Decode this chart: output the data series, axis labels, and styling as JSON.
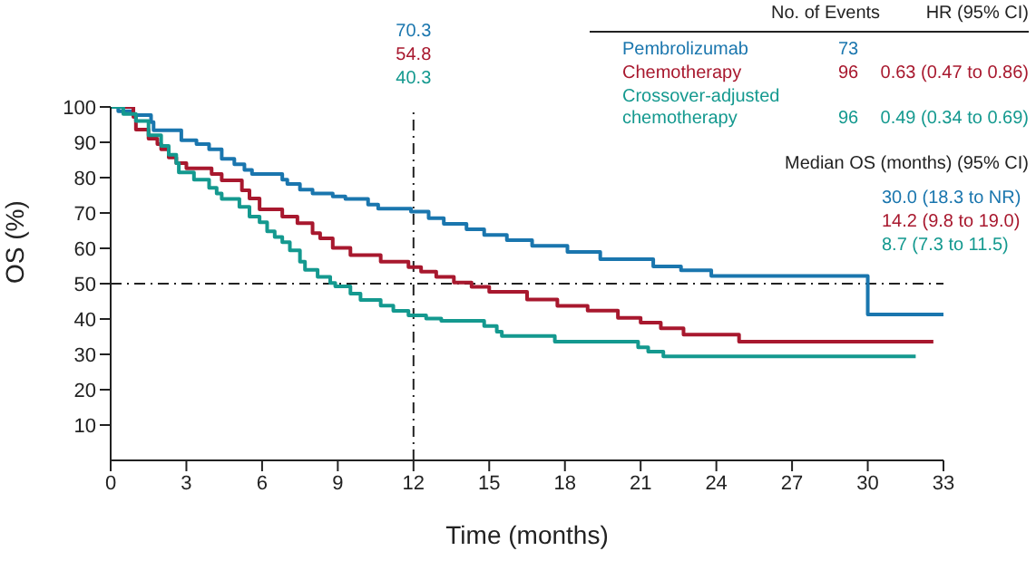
{
  "chart_data": {
    "type": "step",
    "xlabel": "Time (months)",
    "ylabel": "OS (%)",
    "xlim": [
      0,
      33
    ],
    "xticks": [
      0,
      3,
      6,
      9,
      12,
      15,
      18,
      21,
      24,
      27,
      30,
      33
    ],
    "ylim": [
      0,
      100
    ],
    "yticks": [
      10,
      20,
      30,
      40,
      50,
      60,
      70,
      80,
      90,
      100
    ],
    "legend": "top right",
    "ref_lines": [
      {
        "axis": "y",
        "value": 50,
        "line_style": "dashed"
      },
      {
        "axis": "x",
        "value": 12,
        "line_style": "dashed"
      }
    ],
    "annotations": [
      "70.3",
      "54.8",
      "40.3",
      "No. of Events",
      "HR (95% CI)",
      "73",
      "96",
      "0.63 (0.47 to 0.86)",
      "96",
      "0.49 (0.34 to 0.69)",
      "Median OS (months) (95% CI)",
      "30.0 (18.3 to NR)",
      "14.2 (9.8 to 19.0)",
      "8.7 (7.3 to 11.5)"
    ],
    "series": [
      {
        "name": "Pembrolizumab",
        "color": "#1a76ae",
        "x": [
          0,
          0.3,
          0.9,
          1.6,
          1.7,
          2.8,
          3.4,
          3.9,
          4.4,
          4.9,
          5.3,
          5.6,
          6.8,
          7.0,
          7.5,
          8.0,
          8.8,
          9.3,
          10.2,
          10.6,
          11.9,
          12.6,
          13.2,
          14.1,
          14.8,
          15.7,
          16.7,
          18.1,
          19.4,
          21.5,
          22.6,
          23.8,
          30.0,
          33.0
        ],
        "values": [
          100,
          98.8,
          97.7,
          95.7,
          93.4,
          90.6,
          89.5,
          88,
          85.3,
          83.8,
          82.2,
          81,
          79.4,
          78.2,
          76.6,
          75.5,
          74.7,
          74,
          72.4,
          71.2,
          70.4,
          68.5,
          66.9,
          65.4,
          63.8,
          62.3,
          60.7,
          59,
          56.9,
          54.9,
          53.8,
          52.2,
          41.3,
          41.3
        ]
      },
      {
        "name": "Chemotherapy",
        "color": "#a8182e",
        "x": [
          0,
          0.9,
          1.0,
          1.5,
          1.85,
          2.0,
          2.3,
          2.6,
          3.0,
          4.0,
          4.4,
          5.2,
          5.5,
          5.9,
          6.8,
          7.4,
          8.0,
          8.3,
          8.8,
          9.5,
          10.7,
          11.8,
          12.3,
          12.9,
          13.6,
          14.3,
          15.0,
          16.5,
          17.7,
          18.9,
          20.1,
          21.0,
          21.8,
          22.7,
          24.9,
          32.6
        ],
        "values": [
          100,
          97.2,
          93.6,
          91,
          89.5,
          88,
          85.7,
          84.1,
          82.6,
          81,
          79.2,
          76.4,
          74.1,
          71,
          69,
          67.1,
          64.3,
          62.8,
          60.1,
          58.1,
          56.2,
          54.7,
          53.4,
          51.9,
          50.3,
          49.1,
          47.7,
          45.5,
          43.7,
          42.4,
          40.3,
          39,
          37.4,
          35.6,
          33.6,
          33.6
        ]
      },
      {
        "name": "Crossover-adjusted chemotherapy",
        "color": "#14998f",
        "x": [
          0,
          0.5,
          1.0,
          1.5,
          2.0,
          2.3,
          2.6,
          2.7,
          3.3,
          3.9,
          4.2,
          4.4,
          5.1,
          5.5,
          5.9,
          6.2,
          6.5,
          6.8,
          7.1,
          7.5,
          7.7,
          8.2,
          8.7,
          8.9,
          9.5,
          9.9,
          10.7,
          11.2,
          11.8,
          12.5,
          13.1,
          14.8,
          15.3,
          15.5,
          17.6,
          20.9,
          21.3,
          21.9,
          31.9
        ],
        "values": [
          100,
          98,
          96,
          92,
          89,
          86.5,
          84.1,
          81.5,
          79.4,
          77.1,
          75.5,
          74,
          71.7,
          69,
          67.4,
          64.8,
          63.2,
          61.7,
          59.4,
          56.2,
          53.9,
          51.9,
          50.2,
          49.2,
          47.2,
          45.4,
          43.8,
          42.3,
          41,
          40.1,
          39.5,
          38,
          36.4,
          35.2,
          33.6,
          32,
          30.8,
          29.4,
          29.4
        ]
      }
    ]
  }
}
